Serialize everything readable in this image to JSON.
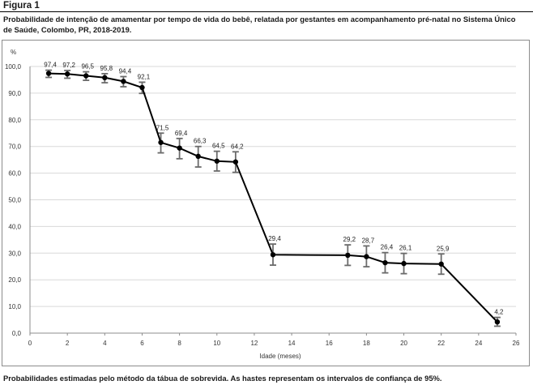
{
  "figure_label": "Figura 1",
  "caption": "Probabilidade de intenção de amamentar por tempo de vida do bebê, relatada por gestantes em acompanhamento pré-natal no Sistema Único de Saúde, Colombo, PR, 2018-2019.",
  "footnote": "Probabilidades estimadas pelo método da tábua de sobrevida. As hastes representam os intervalos de confiança de 95%.",
  "chart_data": {
    "type": "line",
    "title": "",
    "xlabel": "Idade (meses)",
    "ylabel": "%",
    "xlim": [
      0,
      26
    ],
    "ylim": [
      0,
      100
    ],
    "x_ticks": [
      "0",
      "2",
      "4",
      "6",
      "8",
      "10",
      "12",
      "14",
      "16",
      "18",
      "20",
      "22",
      "24",
      "26"
    ],
    "y_ticks": [
      "0,0",
      "10,0",
      "20,0",
      "30,0",
      "40,0",
      "50,0",
      "60,0",
      "70,0",
      "80,0",
      "90,0",
      "100,0"
    ],
    "grid": "horizontal",
    "legend": "none",
    "series": [
      {
        "x": [
          1,
          2,
          3,
          4,
          5,
          6,
          7,
          8,
          9,
          10,
          11,
          13,
          17,
          18,
          19,
          20,
          22,
          25
        ],
        "y": [
          97.4,
          97.2,
          96.5,
          95.8,
          94.4,
          92.1,
          71.5,
          69.4,
          66.3,
          64.5,
          64.2,
          29.4,
          29.2,
          28.7,
          26.4,
          26.1,
          25.9,
          4.2
        ],
        "labels": [
          "97,4",
          "97,2",
          "96,5",
          "95,8",
          "94,4",
          "92,1",
          "71,5",
          "69,4",
          "66,3",
          "64,5",
          "64,2",
          "29,4",
          "29,2",
          "28,7",
          "26,4",
          "26,1",
          "25,9",
          "4,2"
        ],
        "ci_lower": [
          95.9,
          95.6,
          94.8,
          93.9,
          92.4,
          89.9,
          67.6,
          65.4,
          62.3,
          60.8,
          60.3,
          25.5,
          25.4,
          24.9,
          22.6,
          22.3,
          22.1,
          2.6
        ],
        "ci_upper": [
          98.6,
          98.5,
          98.0,
          97.3,
          96.2,
          94.1,
          75.0,
          73.0,
          70.0,
          68.2,
          68.0,
          33.4,
          33.1,
          32.7,
          30.2,
          29.9,
          29.7,
          5.9
        ]
      }
    ],
    "colors": {
      "line": "#000000",
      "grid": "#d9d9d9",
      "axis": "#8c8c8c"
    }
  }
}
